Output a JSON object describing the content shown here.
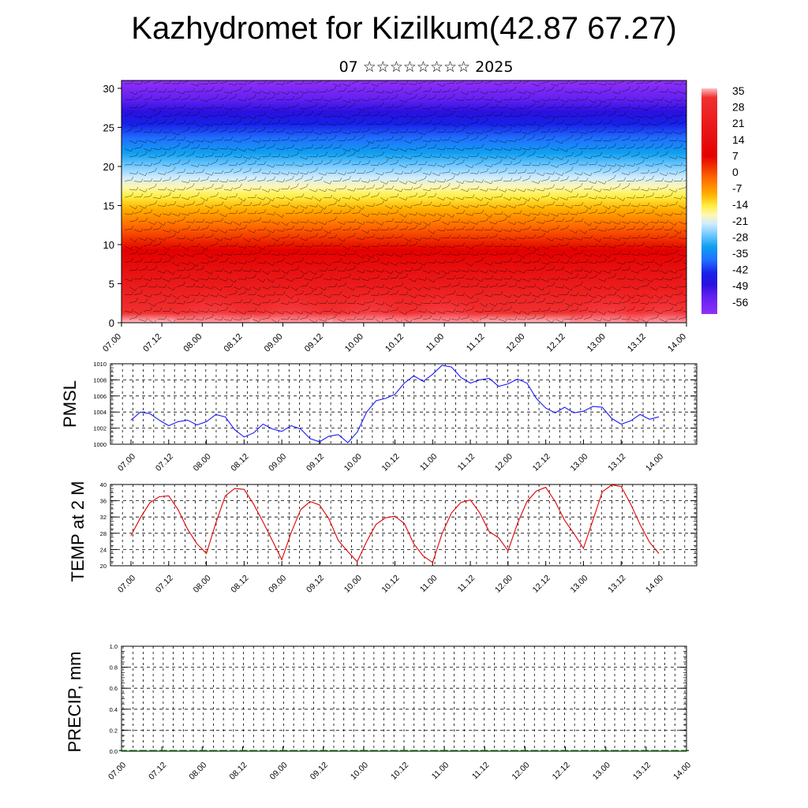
{
  "header": {
    "title": "Kazhydromet for Kizilkum(42.87 67.27)",
    "subtitle": "07 ☆☆☆☆☆☆☆☆ 2025"
  },
  "chart_data": [
    {
      "type": "heatmap",
      "panel": "cross-section",
      "description_values": "temperature shading with wind barbs by model level",
      "x_tick_labels": [
        "07.00",
        "07.12",
        "08.00",
        "08.12",
        "09.00",
        "09.12",
        "10.00",
        "10.12",
        "11.00",
        "11.12",
        "12.00",
        "12.12",
        "13.00",
        "13.12",
        "14.00"
      ],
      "y_ticks": [
        0,
        5,
        10,
        15,
        20,
        25,
        30
      ],
      "ylim": [
        0,
        31
      ],
      "colorbar_labels": [
        "35",
        "28",
        "21",
        "14",
        "7",
        "0",
        "-7",
        "-14",
        "-21",
        "-28",
        "-35",
        "-42",
        "-49",
        "-56"
      ],
      "colorbar_values": [
        35,
        28,
        21,
        14,
        7,
        0,
        -7,
        -14,
        -21,
        -28,
        -35,
        -42,
        -49,
        -56
      ],
      "colors": {
        "warm_light": "#ffb0b8",
        "warm": "#e80000",
        "orange": "#ff8a00",
        "yellow": "#fff200",
        "cold_light": "#bfe7ff",
        "cyan": "#00a8f0",
        "blue": "#1830ff",
        "purple": "#8a20ff"
      }
    },
    {
      "type": "line",
      "ylabel": "PMSL",
      "x_tick_labels": [
        "07.00",
        "07.12",
        "08.00",
        "08.12",
        "09.00",
        "09.12",
        "10.00",
        "10.12",
        "11.00",
        "11.12",
        "12.00",
        "12.12",
        "13.00",
        "13.12",
        "14.00"
      ],
      "y_tick_labels": [
        "1000",
        "1002",
        "1004",
        "1006",
        "1008",
        "1010"
      ],
      "ylim": [
        1000,
        1010
      ],
      "color": "#1a1aff",
      "x": [
        0,
        3,
        6,
        9,
        12,
        15,
        18,
        21,
        24,
        27,
        30,
        33,
        36,
        39,
        42,
        45,
        48,
        51,
        54,
        57,
        60,
        63,
        66,
        69,
        72,
        75,
        78,
        81,
        84,
        87,
        90,
        93,
        96,
        99,
        102,
        105,
        108,
        111,
        114,
        117,
        120,
        123,
        126,
        129,
        132,
        135,
        138,
        141,
        144,
        147,
        150,
        153,
        156,
        159,
        162,
        165,
        168
      ],
      "values": [
        1003.0,
        1004.0,
        1003.8,
        1003.0,
        1002.3,
        1002.8,
        1003.0,
        1002.4,
        1002.8,
        1003.7,
        1003.4,
        1001.8,
        1000.9,
        1001.4,
        1002.5,
        1001.9,
        1001.6,
        1002.3,
        1001.9,
        1000.7,
        1000.3,
        1001.0,
        1001.2,
        1000.2,
        1001.5,
        1004.0,
        1005.4,
        1005.7,
        1006.2,
        1007.6,
        1008.5,
        1007.8,
        1008.7,
        1009.8,
        1009.6,
        1008.3,
        1007.6,
        1008.0,
        1008.2,
        1007.2,
        1007.5,
        1008.1,
        1007.6,
        1005.7,
        1004.5,
        1003.9,
        1004.6,
        1003.9,
        1004.1,
        1004.7,
        1004.6,
        1003.2,
        1002.5,
        1002.9,
        1003.7,
        1003.1,
        1003.4
      ]
    },
    {
      "type": "line",
      "ylabel": "TEMP at 2 M",
      "x_tick_labels": [
        "07.00",
        "07.12",
        "08.00",
        "08.12",
        "09.00",
        "09.12",
        "10.00",
        "10.12",
        "11.00",
        "11.12",
        "12.00",
        "12.12",
        "13.00",
        "13.12",
        "14.00"
      ],
      "y_tick_labels": [
        "20",
        "24",
        "28",
        "32",
        "36",
        "40"
      ],
      "ylim": [
        20,
        40
      ],
      "color": "#e00000",
      "x": [
        0,
        3,
        6,
        9,
        12,
        15,
        18,
        21,
        24,
        27,
        30,
        33,
        36,
        39,
        42,
        45,
        48,
        51,
        54,
        57,
        60,
        63,
        66,
        69,
        72,
        75,
        78,
        81,
        84,
        87,
        90,
        93,
        96,
        99,
        102,
        105,
        108,
        111,
        114,
        117,
        120,
        123,
        126,
        129,
        132,
        135,
        138,
        141,
        144,
        147,
        150,
        153,
        156,
        159,
        162,
        165,
        168
      ],
      "values": [
        27.4,
        31.8,
        35.5,
        37.0,
        37.2,
        33.8,
        29.0,
        25.4,
        23.0,
        30.5,
        37.2,
        39.0,
        38.8,
        35.2,
        30.8,
        26.2,
        21.5,
        28.2,
        33.8,
        35.8,
        35.0,
        31.5,
        26.2,
        23.5,
        21.0,
        26.0,
        30.2,
        31.8,
        32.2,
        30.4,
        25.4,
        22.4,
        20.8,
        27.9,
        33.0,
        35.6,
        36.2,
        33.0,
        28.4,
        26.9,
        23.7,
        30.4,
        35.8,
        38.4,
        39.3,
        35.8,
        31.2,
        27.9,
        24.3,
        31.2,
        38.2,
        39.9,
        39.5,
        35.2,
        30.2,
        25.8,
        23.0
      ]
    },
    {
      "type": "bar",
      "ylabel": "PRECIP, mm",
      "x_tick_labels": [
        "07.00",
        "07.12",
        "08.00",
        "08.12",
        "09.00",
        "09.12",
        "10.00",
        "10.12",
        "11.00",
        "11.12",
        "12.00",
        "12.12",
        "13.00",
        "13.12",
        "14.00"
      ],
      "y_tick_labels": [
        "0.0",
        "0.2",
        "0.4",
        "0.6",
        "0.8",
        "1.0"
      ],
      "ylim": [
        0,
        1
      ],
      "color": "#006000",
      "values": [
        0,
        0,
        0,
        0,
        0,
        0,
        0,
        0,
        0,
        0,
        0,
        0,
        0,
        0,
        0,
        0,
        0,
        0,
        0,
        0,
        0,
        0,
        0,
        0,
        0,
        0,
        0,
        0,
        0,
        0,
        0,
        0,
        0,
        0,
        0,
        0,
        0,
        0,
        0,
        0,
        0,
        0,
        0,
        0,
        0,
        0,
        0,
        0,
        0,
        0,
        0,
        0,
        0,
        0,
        0,
        0,
        0
      ]
    }
  ]
}
